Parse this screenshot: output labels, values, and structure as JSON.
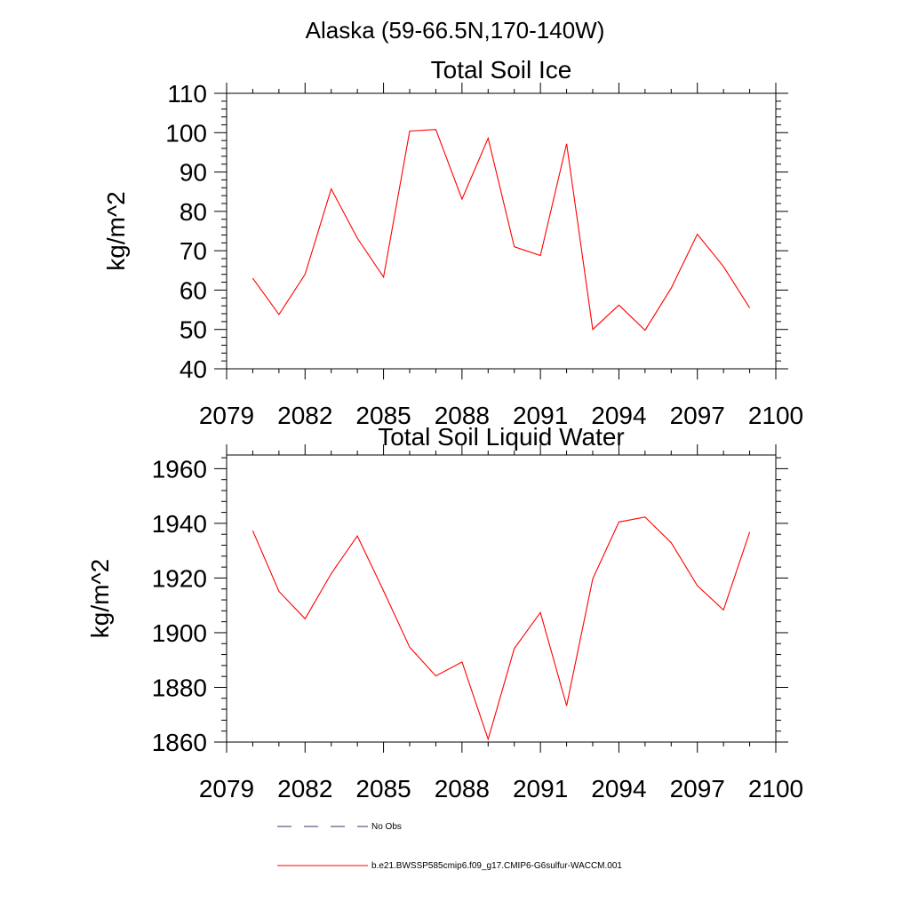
{
  "figure": {
    "main_title": "Alaska (59-66.5N,170-140W)"
  },
  "legend": {
    "entries": [
      {
        "label": "No Obs",
        "style": "dashed",
        "color": "#2f3a6b"
      },
      {
        "label": "b.e21.BWSSP585cmip6.f09_g17.CMIP6-G6sulfur-WACCM.001",
        "style": "solid",
        "color": "#ff0000"
      }
    ],
    "placement": "bottom"
  },
  "chart_data": [
    {
      "type": "line",
      "title": "Total Soil Ice",
      "xlabel": "",
      "ylabel": "kg/m^2",
      "xlim": [
        2079,
        2100
      ],
      "ylim": [
        40,
        110
      ],
      "x_ticks": [
        "2079",
        "2082",
        "2085",
        "2088",
        "2091",
        "2094",
        "2097",
        "2100"
      ],
      "y_ticks": [
        "40",
        "50",
        "60",
        "70",
        "80",
        "90",
        "100",
        "110"
      ],
      "grid": false,
      "series": [
        {
          "color": "#ff0000",
          "x": [
            2080,
            2081,
            2082,
            2083,
            2084,
            2085,
            2086,
            2087,
            2088,
            2089,
            2090,
            2091,
            2092,
            2093,
            2094,
            2095,
            2096,
            2097,
            2098,
            2099
          ],
          "values": [
            63,
            53.8,
            64,
            85.7,
            73.2,
            63.3,
            100.4,
            100.8,
            83.1,
            98.6,
            71,
            68.8,
            97.2,
            50,
            56.2,
            49.8,
            60.5,
            74.2,
            66,
            55.5
          ]
        }
      ]
    },
    {
      "type": "line",
      "title": "Total Soil Liquid Water",
      "xlabel": "",
      "ylabel": "kg/m^2",
      "xlim": [
        2079,
        2100
      ],
      "ylim": [
        1860,
        1965
      ],
      "x_ticks": [
        "2079",
        "2082",
        "2085",
        "2088",
        "2091",
        "2094",
        "2097",
        "2100"
      ],
      "y_ticks": [
        "1860",
        "1880",
        "1900",
        "1920",
        "1940",
        "1960"
      ],
      "grid": false,
      "series": [
        {
          "color": "#ff0000",
          "x": [
            2080,
            2081,
            2082,
            2083,
            2084,
            2085,
            2086,
            2087,
            2088,
            2089,
            2090,
            2091,
            2092,
            2093,
            2094,
            2095,
            2096,
            2097,
            2098,
            2099
          ],
          "values": [
            1937.3,
            1915.1,
            1905.1,
            1921.6,
            1935.4,
            1915.3,
            1894.7,
            1884.2,
            1889.3,
            1861,
            1894.2,
            1907.4,
            1873.3,
            1919.7,
            1940.5,
            1942.3,
            1932.9,
            1917.2,
            1908.3,
            1936.8
          ]
        }
      ]
    }
  ]
}
